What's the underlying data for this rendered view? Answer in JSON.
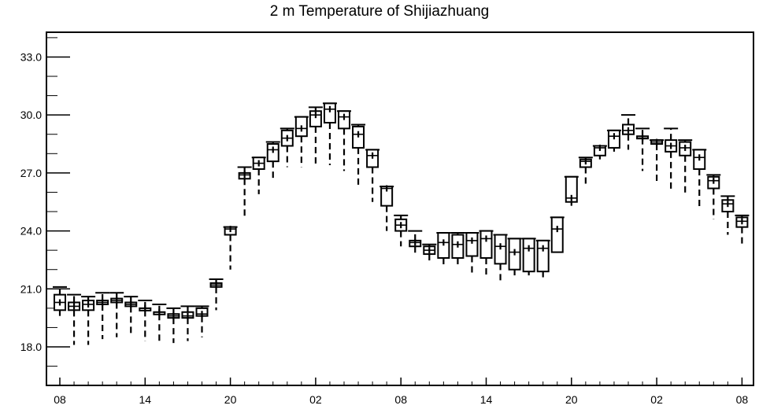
{
  "chart_data": {
    "type": "boxplot",
    "title": "2 m Temperature of Shijiazhuang",
    "xlabel": "",
    "ylabel": "",
    "ylim": [
      16.2,
      34.3
    ],
    "y_ticks": [
      18.0,
      21.0,
      24.0,
      27.0,
      30.0,
      33.0
    ],
    "y_tick_labels": [
      "18.0",
      "21.0",
      "24.0",
      "27.0",
      "30.0",
      "33.0"
    ],
    "x_tick_labels": [
      "08",
      "14",
      "20",
      "02",
      "08",
      "14",
      "20",
      "02",
      "08"
    ],
    "x_tick_steps": [
      0,
      6,
      12,
      18,
      24,
      30,
      36,
      42,
      48
    ],
    "x_step_hours": 1,
    "grid": false,
    "boxes": [
      {
        "step": 0,
        "min": 19.6,
        "q1": 19.9,
        "median": 20.3,
        "q3": 20.7,
        "max": 21.1
      },
      {
        "step": 1,
        "min": 18.1,
        "q1": 19.9,
        "median": 20.1,
        "q3": 20.3,
        "max": 20.7
      },
      {
        "step": 2,
        "min": 18.1,
        "q1": 19.9,
        "median": 20.2,
        "q3": 20.4,
        "max": 20.6
      },
      {
        "step": 3,
        "min": 18.4,
        "q1": 20.2,
        "median": 20.3,
        "q3": 20.4,
        "max": 20.8
      },
      {
        "step": 4,
        "min": 18.5,
        "q1": 20.3,
        "median": 20.4,
        "q3": 20.5,
        "max": 20.8
      },
      {
        "step": 5,
        "min": 18.6,
        "q1": 20.1,
        "median": 20.2,
        "q3": 20.3,
        "max": 20.6
      },
      {
        "step": 6,
        "min": 18.3,
        "q1": 19.9,
        "median": 20.0,
        "q3": 20.0,
        "max": 20.4
      },
      {
        "step": 7,
        "min": 18.3,
        "q1": 19.7,
        "median": 19.8,
        "q3": 19.8,
        "max": 20.2
      },
      {
        "step": 8,
        "min": 18.2,
        "q1": 19.5,
        "median": 19.6,
        "q3": 19.7,
        "max": 20.0
      },
      {
        "step": 9,
        "min": 18.3,
        "q1": 19.5,
        "median": 19.6,
        "q3": 19.8,
        "max": 20.1
      },
      {
        "step": 10,
        "min": 18.5,
        "q1": 19.6,
        "median": 19.7,
        "q3": 20.0,
        "max": 20.1
      },
      {
        "step": 11,
        "min": 19.9,
        "q1": 21.1,
        "median": 21.2,
        "q3": 21.3,
        "max": 21.5
      },
      {
        "step": 12,
        "min": 22.0,
        "q1": 23.8,
        "median": 24.1,
        "q3": 24.2,
        "max": 24.2
      },
      {
        "step": 13,
        "min": 24.7,
        "q1": 26.7,
        "median": 26.9,
        "q3": 27.0,
        "max": 27.3
      },
      {
        "step": 14,
        "min": 25.9,
        "q1": 27.2,
        "median": 27.5,
        "q3": 27.8,
        "max": 27.8
      },
      {
        "step": 15,
        "min": 26.7,
        "q1": 27.6,
        "median": 28.2,
        "q3": 28.5,
        "max": 28.6
      },
      {
        "step": 16,
        "min": 27.3,
        "q1": 28.4,
        "median": 28.8,
        "q3": 29.2,
        "max": 29.3
      },
      {
        "step": 17,
        "min": 27.3,
        "q1": 28.9,
        "median": 29.3,
        "q3": 29.9,
        "max": 29.9
      },
      {
        "step": 18,
        "min": 27.4,
        "q1": 29.4,
        "median": 30.0,
        "q3": 30.2,
        "max": 30.4
      },
      {
        "step": 19,
        "min": 27.4,
        "q1": 29.6,
        "median": 30.3,
        "q3": 30.6,
        "max": 30.6
      },
      {
        "step": 20,
        "min": 27.1,
        "q1": 29.3,
        "median": 29.9,
        "q3": 30.2,
        "max": 30.2
      },
      {
        "step": 21,
        "min": 26.2,
        "q1": 28.3,
        "median": 29.0,
        "q3": 29.4,
        "max": 29.5
      },
      {
        "step": 22,
        "min": 25.5,
        "q1": 27.3,
        "median": 27.9,
        "q3": 28.2,
        "max": 28.2
      },
      {
        "step": 23,
        "min": 24.0,
        "q1": 25.3,
        "median": 26.2,
        "q3": 26.3,
        "max": 26.3
      },
      {
        "step": 24,
        "min": 23.2,
        "q1": 24.0,
        "median": 24.3,
        "q3": 24.6,
        "max": 24.8
      },
      {
        "step": 25,
        "min": 22.7,
        "q1": 23.2,
        "median": 23.4,
        "q3": 23.5,
        "max": 24.0
      },
      {
        "step": 26,
        "min": 22.4,
        "q1": 22.8,
        "median": 23.0,
        "q3": 23.2,
        "max": 23.3
      },
      {
        "step": 27,
        "min": 22.2,
        "q1": 22.6,
        "median": 23.4,
        "q3": 23.9,
        "max": 23.9
      },
      {
        "step": 28,
        "min": 22.1,
        "q1": 22.6,
        "median": 23.3,
        "q3": 23.8,
        "max": 23.9
      },
      {
        "step": 29,
        "min": 21.8,
        "q1": 22.7,
        "median": 23.5,
        "q3": 23.9,
        "max": 23.9
      },
      {
        "step": 30,
        "min": 21.6,
        "q1": 22.6,
        "median": 23.6,
        "q3": 24.0,
        "max": 24.0
      },
      {
        "step": 31,
        "min": 21.4,
        "q1": 22.3,
        "median": 23.2,
        "q3": 23.8,
        "max": 23.8
      },
      {
        "step": 32,
        "min": 21.7,
        "q1": 22.0,
        "median": 22.9,
        "q3": 23.6,
        "max": 23.6
      },
      {
        "step": 33,
        "min": 21.7,
        "q1": 21.9,
        "median": 23.1,
        "q3": 23.6,
        "max": 23.6
      },
      {
        "step": 34,
        "min": 21.6,
        "q1": 21.9,
        "median": 23.1,
        "q3": 23.5,
        "max": 23.5
      },
      {
        "step": 35,
        "min": 22.9,
        "q1": 22.9,
        "median": 24.1,
        "q3": 24.7,
        "max": 24.7
      },
      {
        "step": 36,
        "min": 25.3,
        "q1": 25.5,
        "median": 25.7,
        "q3": 26.8,
        "max": 26.8
      },
      {
        "step": 37,
        "min": 26.4,
        "q1": 27.3,
        "median": 27.6,
        "q3": 27.7,
        "max": 27.8
      },
      {
        "step": 38,
        "min": 27.7,
        "q1": 27.9,
        "median": 28.3,
        "q3": 28.4,
        "max": 28.4
      },
      {
        "step": 39,
        "min": 28.1,
        "q1": 28.3,
        "median": 28.9,
        "q3": 29.2,
        "max": 29.2
      },
      {
        "step": 40,
        "min": 28.2,
        "q1": 29.0,
        "median": 29.2,
        "q3": 29.5,
        "max": 30.0
      },
      {
        "step": 41,
        "min": 27.1,
        "q1": 28.8,
        "median": 28.8,
        "q3": 28.9,
        "max": 29.3
      },
      {
        "step": 42,
        "min": 26.4,
        "q1": 28.5,
        "median": 28.6,
        "q3": 28.7,
        "max": 28.7
      },
      {
        "step": 43,
        "min": 26.0,
        "q1": 28.1,
        "median": 28.4,
        "q3": 28.7,
        "max": 29.3
      },
      {
        "step": 44,
        "min": 25.8,
        "q1": 27.9,
        "median": 28.3,
        "q3": 28.6,
        "max": 28.7
      },
      {
        "step": 45,
        "min": 25.2,
        "q1": 27.2,
        "median": 27.8,
        "q3": 28.2,
        "max": 28.2
      },
      {
        "step": 46,
        "min": 24.6,
        "q1": 26.2,
        "median": 26.6,
        "q3": 26.8,
        "max": 26.9
      },
      {
        "step": 47,
        "min": 23.8,
        "q1": 25.0,
        "median": 25.4,
        "q3": 25.6,
        "max": 25.8
      },
      {
        "step": 48,
        "min": 23.2,
        "q1": 24.2,
        "median": 24.5,
        "q3": 24.7,
        "max": 24.8
      }
    ]
  }
}
